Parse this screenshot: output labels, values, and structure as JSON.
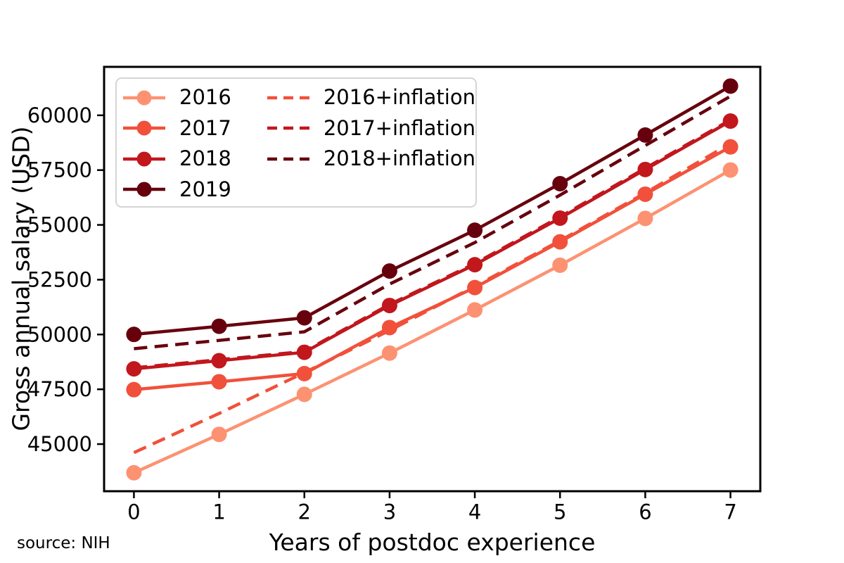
{
  "figure": {
    "source_note": "source: NIH",
    "background": "#ffffff"
  },
  "chart_data": {
    "type": "line",
    "title": "",
    "xlabel": "Years of postdoc experience",
    "ylabel": "Gross annual salary (USD)",
    "x": [
      0,
      1,
      2,
      3,
      4,
      5,
      6,
      7
    ],
    "xticks": [
      0,
      1,
      2,
      3,
      4,
      5,
      6,
      7
    ],
    "yticks": [
      45000,
      47500,
      50000,
      52500,
      55000,
      57500,
      60000
    ],
    "xlim": [
      -0.35,
      7.35
    ],
    "ylim": [
      42850,
      62210
    ],
    "grid": false,
    "legend_position": "upper-left",
    "legend_columns": [
      [
        "2016",
        "2017",
        "2018",
        "2019"
      ],
      [
        "2016+inflation",
        "2017+inflation",
        "2018+inflation"
      ]
    ],
    "series": [
      {
        "name": "2016",
        "line": "solid",
        "marker": "circle",
        "color": "#fc9272",
        "values": [
          43692,
          45444,
          47268,
          49152,
          51120,
          53160,
          55296,
          57504
        ]
      },
      {
        "name": "2017",
        "line": "solid",
        "marker": "circle",
        "color": "#f1503b",
        "values": [
          47484,
          47844,
          48216,
          50316,
          52140,
          54228,
          56400,
          58560
        ]
      },
      {
        "name": "2018",
        "line": "solid",
        "marker": "circle",
        "color": "#c1171d",
        "values": [
          48432,
          48804,
          49188,
          51324,
          53184,
          55308,
          57528,
          59736
        ]
      },
      {
        "name": "2019",
        "line": "solid",
        "marker": "circle",
        "color": "#67000d",
        "values": [
          50004,
          50376,
          50760,
          52896,
          54756,
          56880,
          59100,
          61332
        ]
      },
      {
        "name": "2016+inflation",
        "line": "dashed",
        "marker": "none",
        "color": "#f1503b",
        "values": [
          44610,
          46399,
          48261,
          50184,
          52196,
          54279,
          56460,
          58715
        ]
      },
      {
        "name": "2017+inflation",
        "line": "dashed",
        "marker": "none",
        "color": "#c1171d",
        "values": [
          48481,
          48849,
          49229,
          51373,
          53235,
          55367,
          57584,
          59790
        ]
      },
      {
        "name": "2018+inflation",
        "line": "dashed",
        "marker": "none",
        "color": "#67000d",
        "values": [
          49352,
          49731,
          50123,
          52300,
          54194,
          56359,
          58621,
          60870
        ]
      }
    ]
  }
}
